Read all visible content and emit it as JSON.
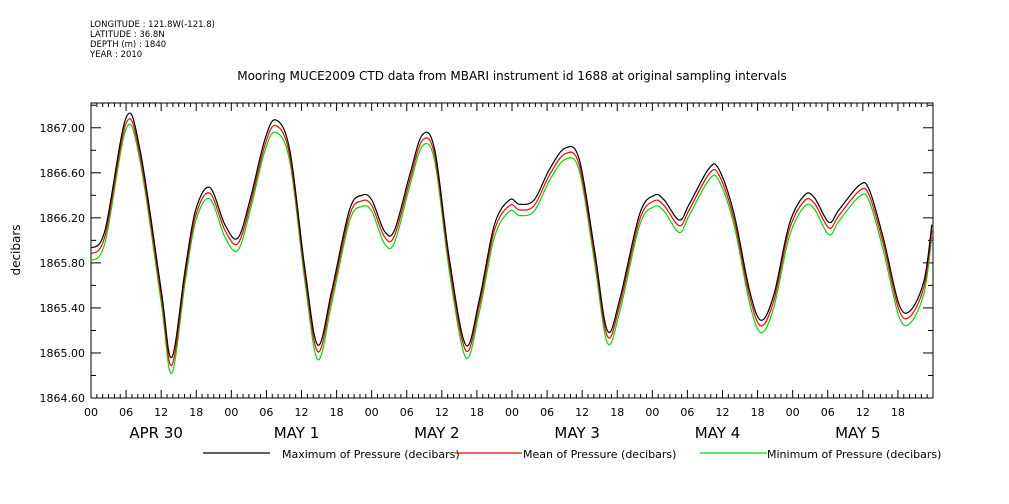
{
  "header": {
    "longitude": "LONGITUDE : 121.8W(-121.8)",
    "latitude": "LATITUDE : 36.8N",
    "depth": "DEPTH (m) : 1840",
    "year": "YEAR : 2010"
  },
  "chart_data": {
    "type": "line",
    "title": "Mooring MUCE2009 CTD data from MBARI instrument id 1688 at original sampling intervals",
    "xlabel": "",
    "ylabel": "decibars",
    "xlim": [
      0,
      144
    ],
    "ylim": [
      1864.6,
      1867.22
    ],
    "grid": false,
    "legend_position": "bottom",
    "yticks": [
      "1864.60",
      "1865.00",
      "1865.40",
      "1865.80",
      "1866.20",
      "1866.60",
      "1867.00"
    ],
    "xtick_hour_labels": [
      "00",
      "06",
      "12",
      "18",
      "00",
      "06",
      "12",
      "18",
      "00",
      "06",
      "12",
      "18",
      "00",
      "06",
      "12",
      "18",
      "00",
      "06",
      "12",
      "18",
      "00",
      "06",
      "12",
      "18"
    ],
    "day_labels": [
      "APR 30",
      "MAY  1",
      "MAY  2",
      "MAY  3",
      "MAY  4",
      "MAY  5"
    ],
    "x_hours": [
      0,
      2.4,
      6,
      8.4,
      12,
      13.8,
      16.1,
      17.9,
      20.3,
      22.9,
      25.1,
      27.2,
      29.7,
      31.6,
      34,
      36.6,
      38.8,
      41.2,
      44.2,
      46.3,
      48,
      50.2,
      51.9,
      54.5,
      56.7,
      58.8,
      61.3,
      64.1,
      66.4,
      69,
      71.6,
      73.3,
      75.8,
      78.4,
      81.1,
      83.5,
      86.1,
      88.3,
      90.4,
      93.8,
      96.3,
      98,
      100.6,
      102.3,
      105.7,
      107.4,
      110,
      112.6,
      114.6,
      116.8,
      119.4,
      122,
      123.7,
      126.2,
      127.9,
      131.4,
      133.1,
      135.6,
      138.2,
      140.2,
      142.5,
      143.8
    ],
    "series": [
      {
        "name": "Maximum of Pressure (decibars)",
        "color": "#000000",
        "values": [
          1865.93,
          1866.09,
          1867.09,
          1866.8,
          1865.56,
          1864.96,
          1865.74,
          1866.27,
          1866.47,
          1866.14,
          1866.02,
          1866.36,
          1866.89,
          1867.07,
          1866.8,
          1865.74,
          1865.07,
          1865.56,
          1866.27,
          1866.4,
          1866.36,
          1866.08,
          1866.09,
          1866.58,
          1866.94,
          1866.8,
          1865.83,
          1865.07,
          1865.47,
          1866.14,
          1866.36,
          1866.32,
          1866.36,
          1866.63,
          1866.82,
          1866.72,
          1865.92,
          1865.2,
          1865.47,
          1866.23,
          1866.4,
          1866.36,
          1866.18,
          1866.32,
          1866.64,
          1866.63,
          1866.23,
          1865.56,
          1865.29,
          1865.52,
          1866.14,
          1866.4,
          1866.38,
          1866.16,
          1866.27,
          1866.49,
          1866.45,
          1866.0,
          1865.43,
          1865.38,
          1865.65,
          1866.14
        ]
      },
      {
        "name": "Mean of Pressure (decibars)",
        "color": "#ff0000",
        "values": [
          1865.88,
          1866.04,
          1867.04,
          1866.75,
          1865.51,
          1864.89,
          1865.69,
          1866.22,
          1866.42,
          1866.09,
          1865.97,
          1866.31,
          1866.84,
          1867.02,
          1866.75,
          1865.69,
          1865.01,
          1865.51,
          1866.22,
          1866.35,
          1866.31,
          1866.03,
          1866.04,
          1866.53,
          1866.89,
          1866.75,
          1865.78,
          1865.02,
          1865.42,
          1866.09,
          1866.31,
          1866.27,
          1866.31,
          1866.58,
          1866.77,
          1866.67,
          1865.87,
          1865.15,
          1865.42,
          1866.18,
          1866.35,
          1866.31,
          1866.13,
          1866.27,
          1866.59,
          1866.58,
          1866.18,
          1865.51,
          1865.24,
          1865.47,
          1866.09,
          1866.35,
          1866.33,
          1866.11,
          1866.22,
          1866.44,
          1866.4,
          1865.95,
          1865.38,
          1865.33,
          1865.6,
          1866.09
        ]
      },
      {
        "name": "Minimum of Pressure (decibars)",
        "color": "#00dd00",
        "values": [
          1865.82,
          1865.98,
          1866.99,
          1866.7,
          1865.45,
          1864.82,
          1865.63,
          1866.17,
          1866.37,
          1866.03,
          1865.91,
          1866.26,
          1866.79,
          1866.96,
          1866.7,
          1865.63,
          1864.94,
          1865.45,
          1866.17,
          1866.3,
          1866.26,
          1865.97,
          1865.98,
          1866.48,
          1866.84,
          1866.7,
          1865.72,
          1864.96,
          1865.36,
          1866.03,
          1866.26,
          1866.22,
          1866.26,
          1866.53,
          1866.72,
          1866.62,
          1865.81,
          1865.09,
          1865.36,
          1866.13,
          1866.3,
          1866.26,
          1866.07,
          1866.22,
          1866.54,
          1866.53,
          1866.13,
          1865.45,
          1865.18,
          1865.41,
          1866.03,
          1866.3,
          1866.28,
          1866.05,
          1866.17,
          1866.39,
          1866.35,
          1865.89,
          1865.32,
          1865.27,
          1865.54,
          1866.03
        ]
      }
    ]
  }
}
